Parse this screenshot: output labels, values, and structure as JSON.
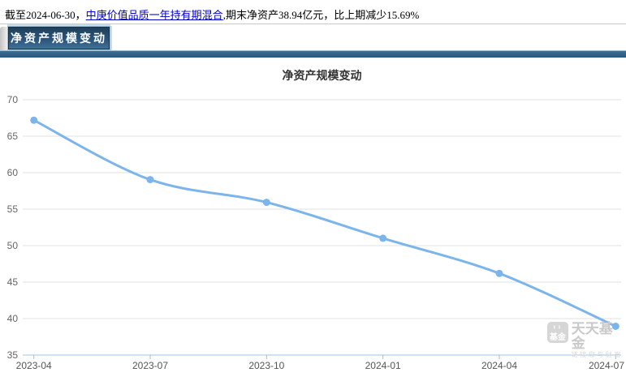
{
  "summary": {
    "prefix": "截至2024-06-30，",
    "fund_name": "中庚价值品质一年持有期混合",
    "suffix": ",期末净资产38.94亿元，比上期减少15.69%"
  },
  "tabs": [
    {
      "label": "净资产规模变动",
      "active": true
    }
  ],
  "chart_data": {
    "type": "line",
    "title": "净资产规模变动",
    "categories": [
      "2023-04",
      "2023-07",
      "2023-10",
      "2024-01",
      "2024-04",
      "2024-07"
    ],
    "values": [
      67.19,
      59.05,
      55.93,
      51.01,
      46.19,
      38.94
    ],
    "xlabel": "",
    "ylabel": "",
    "ylim": [
      35,
      70
    ],
    "ytick_step": 5,
    "grid": true,
    "legend_position": "none",
    "line_color": "#7cb5ec",
    "marker_color": "#7cb5ec",
    "grid_color": "#e2e2e2",
    "axis_line_color": "#9fc3e7",
    "tick_color": "#b6b6b6",
    "label_color": "#666666",
    "title_color": "#333333"
  },
  "watermark": {
    "logo_text": "基金",
    "name": "天天基金",
    "slogan": "链接您与财富"
  }
}
